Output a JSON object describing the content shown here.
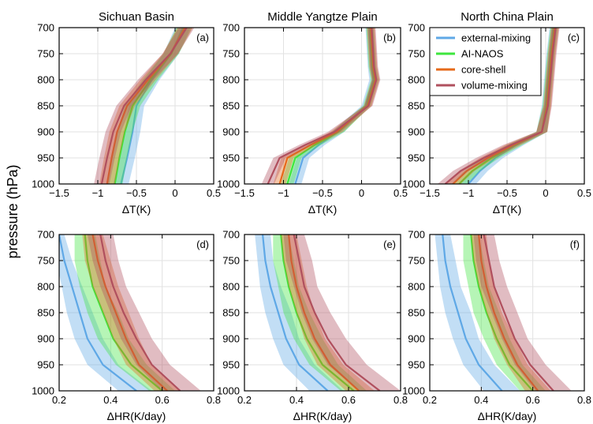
{
  "figure": {
    "shared_ylabel": "pressure (hPa)"
  },
  "colors": {
    "external-mixing": "#5fa8e6",
    "AI-NAOS": "#3ee63e",
    "core-shell": "#e66a1a",
    "volume-mixing": "#b0505e"
  },
  "legend": {
    "placement": "top-right of panel (c)",
    "entries": [
      "external-mixing",
      "AI-NAOS",
      "core-shell",
      "volume-mixing"
    ]
  },
  "chart_data": [
    {
      "panel": "(a)",
      "type": "line",
      "title": "Sichuan Basin",
      "xlabel": "ΔT(K)",
      "ylabel": "pressure (hPa)",
      "xlim": [
        -1.5,
        0.5
      ],
      "ylim": [
        1000,
        700
      ],
      "grid": true,
      "xticks": [
        -1.5,
        -1,
        -0.5,
        0,
        0.5
      ],
      "xtick_labels": [
        "−1.5",
        "−1",
        "−0.5",
        "0",
        "0.5"
      ],
      "yticks": [
        700,
        750,
        800,
        850,
        900,
        950,
        1000
      ],
      "ytick_labels": [
        "700",
        "750",
        "800",
        "850",
        "900",
        "950",
        "1000"
      ],
      "y": [
        700,
        750,
        800,
        850,
        900,
        950,
        1000
      ],
      "series": [
        {
          "name": "external-mixing",
          "x": [
            0.1,
            -0.05,
            -0.3,
            -0.5,
            -0.55,
            -0.62,
            -0.7
          ],
          "lo": [
            0.0,
            -0.15,
            -0.4,
            -0.6,
            -0.65,
            -0.72,
            -0.8
          ],
          "hi": [
            0.2,
            0.05,
            -0.2,
            -0.4,
            -0.45,
            -0.52,
            -0.6
          ]
        },
        {
          "name": "AI-NAOS",
          "x": [
            0.12,
            -0.05,
            -0.32,
            -0.55,
            -0.65,
            -0.72,
            -0.78
          ],
          "lo": [
            0.02,
            -0.15,
            -0.42,
            -0.65,
            -0.75,
            -0.82,
            -0.88
          ],
          "hi": [
            0.22,
            0.05,
            -0.22,
            -0.45,
            -0.55,
            -0.62,
            -0.68
          ]
        },
        {
          "name": "core-shell",
          "x": [
            0.13,
            -0.06,
            -0.35,
            -0.62,
            -0.75,
            -0.82,
            -0.88
          ],
          "lo": [
            0.03,
            -0.16,
            -0.45,
            -0.72,
            -0.85,
            -0.92,
            -0.98
          ],
          "hi": [
            0.23,
            0.04,
            -0.25,
            -0.52,
            -0.65,
            -0.72,
            -0.78
          ]
        },
        {
          "name": "volume-mixing",
          "x": [
            0.15,
            -0.06,
            -0.38,
            -0.66,
            -0.8,
            -0.88,
            -0.95
          ],
          "lo": [
            0.05,
            -0.16,
            -0.48,
            -0.76,
            -0.9,
            -0.98,
            -1.05
          ],
          "hi": [
            0.25,
            0.04,
            -0.28,
            -0.56,
            -0.7,
            -0.78,
            -0.85
          ]
        }
      ]
    },
    {
      "panel": "(b)",
      "type": "line",
      "title": "Middle Yangtze Plain",
      "xlabel": "ΔT(K)",
      "ylabel": "pressure (hPa)",
      "xlim": [
        -1.5,
        0.5
      ],
      "ylim": [
        1000,
        700
      ],
      "grid": true,
      "xticks": [
        -1.5,
        -1,
        -0.5,
        0,
        0.5
      ],
      "xtick_labels": [
        "−1.5",
        "−1",
        "−0.5",
        "0",
        "0.5"
      ],
      "yticks": [
        700,
        750,
        800,
        850,
        900,
        950,
        1000
      ],
      "ytick_labels": [
        "700",
        "750",
        "800",
        "850",
        "900",
        "950",
        "1000"
      ],
      "y": [
        700,
        750,
        775,
        800,
        850,
        900,
        925,
        950,
        1000
      ],
      "series": [
        {
          "name": "external-mixing",
          "x": [
            0.1,
            0.12,
            0.13,
            0.15,
            0.05,
            -0.3,
            -0.55,
            -0.75,
            -0.85
          ],
          "lo": [
            0.05,
            0.07,
            0.08,
            0.1,
            0.0,
            -0.38,
            -0.63,
            -0.83,
            -0.93
          ],
          "hi": [
            0.15,
            0.17,
            0.18,
            0.2,
            0.1,
            -0.22,
            -0.47,
            -0.67,
            -0.77
          ]
        },
        {
          "name": "AI-NAOS",
          "x": [
            0.11,
            0.13,
            0.14,
            0.17,
            0.07,
            -0.3,
            -0.6,
            -0.85,
            -0.95
          ],
          "lo": [
            0.06,
            0.08,
            0.09,
            0.12,
            0.02,
            -0.38,
            -0.68,
            -0.93,
            -1.03
          ],
          "hi": [
            0.16,
            0.18,
            0.19,
            0.22,
            0.12,
            -0.22,
            -0.52,
            -0.77,
            -0.87
          ]
        },
        {
          "name": "core-shell",
          "x": [
            0.12,
            0.14,
            0.15,
            0.18,
            0.08,
            -0.32,
            -0.65,
            -0.95,
            -1.05
          ],
          "lo": [
            0.07,
            0.09,
            0.1,
            0.13,
            0.03,
            -0.4,
            -0.73,
            -1.03,
            -1.13
          ],
          "hi": [
            0.17,
            0.19,
            0.2,
            0.23,
            0.13,
            -0.24,
            -0.57,
            -0.87,
            -0.97
          ]
        },
        {
          "name": "volume-mixing",
          "x": [
            0.13,
            0.15,
            0.16,
            0.19,
            0.09,
            -0.35,
            -0.72,
            -1.05,
            -1.2
          ],
          "lo": [
            0.08,
            0.1,
            0.11,
            0.14,
            0.04,
            -0.43,
            -0.8,
            -1.13,
            -1.28
          ],
          "hi": [
            0.18,
            0.2,
            0.21,
            0.24,
            0.14,
            -0.27,
            -0.64,
            -0.97,
            -1.12
          ]
        }
      ]
    },
    {
      "panel": "(c)",
      "type": "line",
      "title": "North China Plain",
      "xlabel": "ΔT(K)",
      "ylabel": "pressure (hPa)",
      "xlim": [
        -1.5,
        0.5
      ],
      "ylim": [
        1000,
        700
      ],
      "grid": true,
      "xticks": [
        -1.5,
        -1,
        -0.5,
        0,
        0.5
      ],
      "xtick_labels": [
        "−1.5",
        "−1",
        "−0.5",
        "0",
        "0.5"
      ],
      "yticks": [
        700,
        750,
        800,
        850,
        900,
        950,
        1000
      ],
      "ytick_labels": [
        "700",
        "750",
        "800",
        "850",
        "900",
        "950",
        "1000"
      ],
      "y": [
        700,
        750,
        800,
        850,
        900,
        925,
        950,
        975,
        1000
      ],
      "series": [
        {
          "name": "external-mixing",
          "x": [
            0.1,
            0.06,
            0.03,
            0.0,
            -0.05,
            -0.38,
            -0.65,
            -0.85,
            -1.0
          ],
          "lo": [
            0.05,
            0.01,
            -0.02,
            -0.05,
            -0.12,
            -0.48,
            -0.75,
            -0.95,
            -1.1
          ],
          "hi": [
            0.15,
            0.11,
            0.08,
            0.05,
            0.02,
            -0.28,
            -0.55,
            -0.75,
            -0.9
          ]
        },
        {
          "name": "AI-NAOS",
          "x": [
            0.11,
            0.07,
            0.04,
            0.01,
            -0.05,
            -0.4,
            -0.7,
            -0.95,
            -1.12
          ],
          "lo": [
            0.06,
            0.02,
            -0.01,
            -0.04,
            -0.12,
            -0.5,
            -0.8,
            -1.05,
            -1.22
          ],
          "hi": [
            0.16,
            0.12,
            0.09,
            0.06,
            0.02,
            -0.3,
            -0.6,
            -0.85,
            -1.02
          ]
        },
        {
          "name": "core-shell",
          "x": [
            0.12,
            0.08,
            0.05,
            0.02,
            -0.05,
            -0.42,
            -0.75,
            -1.02,
            -1.2
          ],
          "lo": [
            0.07,
            0.03,
            0.0,
            -0.03,
            -0.12,
            -0.52,
            -0.85,
            -1.12,
            -1.3
          ],
          "hi": [
            0.17,
            0.13,
            0.1,
            0.07,
            0.02,
            -0.32,
            -0.65,
            -0.92,
            -1.1
          ]
        },
        {
          "name": "volume-mixing",
          "x": [
            0.13,
            0.09,
            0.06,
            0.03,
            -0.05,
            -0.45,
            -0.8,
            -1.1,
            -1.3
          ],
          "lo": [
            0.08,
            0.04,
            0.01,
            -0.02,
            -0.12,
            -0.55,
            -0.9,
            -1.2,
            -1.4
          ],
          "hi": [
            0.18,
            0.14,
            0.11,
            0.08,
            0.02,
            -0.35,
            -0.7,
            -1.0,
            -1.2
          ]
        }
      ]
    },
    {
      "panel": "(d)",
      "type": "line",
      "title": "",
      "xlabel": "ΔHR(K/day)",
      "ylabel": "pressure (hPa)",
      "xlim": [
        0.2,
        0.8
      ],
      "ylim": [
        1000,
        700
      ],
      "grid": true,
      "xticks": [
        0.2,
        0.4,
        0.6,
        0.8
      ],
      "xtick_labels": [
        "0.2",
        "0.4",
        "0.6",
        "0.8"
      ],
      "yticks": [
        700,
        750,
        800,
        850,
        900,
        950,
        1000
      ],
      "ytick_labels": [
        "700",
        "750",
        "800",
        "850",
        "900",
        "950",
        "1000"
      ],
      "y": [
        700,
        750,
        800,
        850,
        900,
        950,
        1000
      ],
      "series": [
        {
          "name": "external-mixing",
          "x": [
            0.2,
            0.22,
            0.25,
            0.28,
            0.31,
            0.37,
            0.5
          ],
          "lo": [
            0.18,
            0.19,
            0.21,
            0.23,
            0.26,
            0.31,
            0.43
          ],
          "hi": [
            0.22,
            0.25,
            0.29,
            0.33,
            0.37,
            0.43,
            0.56
          ]
        },
        {
          "name": "AI-NAOS",
          "x": [
            0.3,
            0.31,
            0.33,
            0.37,
            0.41,
            0.48,
            0.6
          ],
          "lo": [
            0.26,
            0.26,
            0.28,
            0.31,
            0.35,
            0.42,
            0.55
          ],
          "hi": [
            0.34,
            0.36,
            0.38,
            0.43,
            0.47,
            0.54,
            0.65
          ]
        },
        {
          "name": "core-shell",
          "x": [
            0.33,
            0.35,
            0.38,
            0.42,
            0.46,
            0.51,
            0.62
          ],
          "lo": [
            0.29,
            0.3,
            0.33,
            0.37,
            0.41,
            0.46,
            0.57
          ],
          "hi": [
            0.37,
            0.4,
            0.43,
            0.47,
            0.51,
            0.56,
            0.67
          ]
        },
        {
          "name": "volume-mixing",
          "x": [
            0.36,
            0.38,
            0.41,
            0.45,
            0.5,
            0.56,
            0.67
          ],
          "lo": [
            0.31,
            0.33,
            0.36,
            0.4,
            0.44,
            0.5,
            0.6
          ],
          "hi": [
            0.41,
            0.43,
            0.46,
            0.51,
            0.56,
            0.63,
            0.75
          ]
        }
      ]
    },
    {
      "panel": "(e)",
      "type": "line",
      "title": "",
      "xlabel": "ΔHR(K/day)",
      "ylabel": "pressure (hPa)",
      "xlim": [
        0.2,
        0.8
      ],
      "ylim": [
        1000,
        700
      ],
      "grid": true,
      "xticks": [
        0.2,
        0.4,
        0.6,
        0.8
      ],
      "xtick_labels": [
        "0.2",
        "0.4",
        "0.6",
        "0.8"
      ],
      "yticks": [
        700,
        750,
        800,
        850,
        900,
        950,
        1000
      ],
      "ytick_labels": [
        "700",
        "750",
        "800",
        "850",
        "900",
        "950",
        "1000"
      ],
      "y": [
        700,
        750,
        800,
        850,
        900,
        950,
        1000
      ],
      "series": [
        {
          "name": "external-mixing",
          "x": [
            0.27,
            0.28,
            0.3,
            0.33,
            0.36,
            0.41,
            0.52
          ],
          "lo": [
            0.24,
            0.25,
            0.26,
            0.28,
            0.31,
            0.35,
            0.45
          ],
          "hi": [
            0.3,
            0.31,
            0.34,
            0.38,
            0.41,
            0.47,
            0.58
          ]
        },
        {
          "name": "AI-NAOS",
          "x": [
            0.34,
            0.35,
            0.37,
            0.4,
            0.44,
            0.5,
            0.62
          ],
          "lo": [
            0.31,
            0.31,
            0.33,
            0.35,
            0.39,
            0.45,
            0.57
          ],
          "hi": [
            0.37,
            0.39,
            0.41,
            0.45,
            0.5,
            0.56,
            0.67
          ]
        },
        {
          "name": "core-shell",
          "x": [
            0.37,
            0.38,
            0.4,
            0.43,
            0.47,
            0.53,
            0.64
          ],
          "lo": [
            0.34,
            0.35,
            0.37,
            0.4,
            0.43,
            0.48,
            0.59
          ],
          "hi": [
            0.4,
            0.42,
            0.44,
            0.47,
            0.51,
            0.58,
            0.7
          ]
        },
        {
          "name": "volume-mixing",
          "x": [
            0.39,
            0.41,
            0.43,
            0.47,
            0.52,
            0.59,
            0.72
          ],
          "lo": [
            0.35,
            0.36,
            0.39,
            0.42,
            0.46,
            0.52,
            0.64
          ],
          "hi": [
            0.43,
            0.46,
            0.48,
            0.53,
            0.59,
            0.67,
            0.8
          ]
        }
      ]
    },
    {
      "panel": "(f)",
      "type": "line",
      "title": "",
      "xlabel": "ΔHR(K/day)",
      "ylabel": "pressure (hPa)",
      "xlim": [
        0.2,
        0.8
      ],
      "ylim": [
        1000,
        700
      ],
      "grid": true,
      "xticks": [
        0.2,
        0.4,
        0.6,
        0.8
      ],
      "xtick_labels": [
        "0.2",
        "0.4",
        "0.6",
        "0.8"
      ],
      "yticks": [
        700,
        750,
        800,
        850,
        900,
        950,
        1000
      ],
      "ytick_labels": [
        "700",
        "750",
        "800",
        "850",
        "900",
        "950",
        "1000"
      ],
      "y": [
        700,
        750,
        800,
        850,
        900,
        950,
        1000
      ],
      "series": [
        {
          "name": "external-mixing",
          "x": [
            0.25,
            0.26,
            0.28,
            0.31,
            0.34,
            0.39,
            0.48
          ],
          "lo": [
            0.22,
            0.23,
            0.24,
            0.26,
            0.29,
            0.33,
            0.41
          ],
          "hi": [
            0.28,
            0.3,
            0.32,
            0.36,
            0.39,
            0.45,
            0.55
          ]
        },
        {
          "name": "AI-NAOS",
          "x": [
            0.36,
            0.37,
            0.39,
            0.42,
            0.46,
            0.51,
            0.6
          ],
          "lo": [
            0.33,
            0.33,
            0.35,
            0.37,
            0.41,
            0.46,
            0.55
          ],
          "hi": [
            0.39,
            0.41,
            0.43,
            0.47,
            0.51,
            0.56,
            0.65
          ]
        },
        {
          "name": "core-shell",
          "x": [
            0.39,
            0.4,
            0.42,
            0.45,
            0.49,
            0.54,
            0.62
          ],
          "lo": [
            0.36,
            0.37,
            0.39,
            0.42,
            0.45,
            0.5,
            0.57
          ],
          "hi": [
            0.42,
            0.43,
            0.45,
            0.48,
            0.53,
            0.58,
            0.67
          ]
        },
        {
          "name": "volume-mixing",
          "x": [
            0.41,
            0.43,
            0.45,
            0.49,
            0.53,
            0.59,
            0.68
          ],
          "lo": [
            0.37,
            0.38,
            0.4,
            0.44,
            0.48,
            0.53,
            0.61
          ],
          "hi": [
            0.45,
            0.47,
            0.5,
            0.54,
            0.58,
            0.65,
            0.75
          ]
        }
      ]
    }
  ]
}
